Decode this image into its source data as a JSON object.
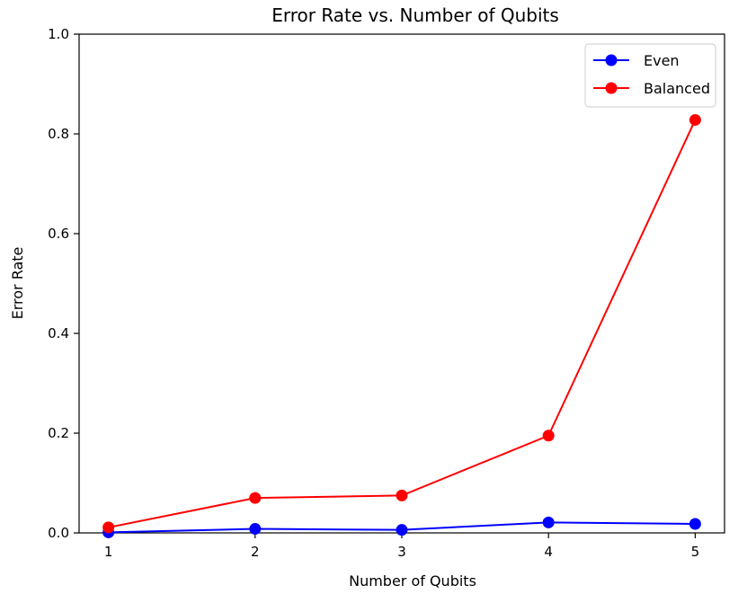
{
  "chart_data": {
    "type": "line",
    "title": "Error Rate vs. Number of Qubits",
    "xlabel": "Number of Qubits",
    "ylabel": "Error Rate",
    "x": [
      1,
      2,
      3,
      4,
      5
    ],
    "xticks": [
      "1",
      "2",
      "3",
      "4",
      "5"
    ],
    "xlim": [
      0.8,
      5.2
    ],
    "ylim": [
      0.0,
      1.0
    ],
    "yticks": [
      "0.0",
      "0.2",
      "0.4",
      "0.6",
      "0.8",
      "1.0"
    ],
    "yticks_values": [
      0.0,
      0.2,
      0.4,
      0.6,
      0.8,
      1.0
    ],
    "grid": false,
    "legend": "top-right",
    "series": [
      {
        "name": "Even",
        "color": "#0000ff",
        "marker": "circle",
        "values": [
          0.001,
          0.008,
          0.006,
          0.021,
          0.018
        ]
      },
      {
        "name": "Balanced",
        "color": "#ff0000",
        "marker": "circle",
        "values": [
          0.011,
          0.07,
          0.075,
          0.195,
          0.828
        ]
      }
    ]
  }
}
